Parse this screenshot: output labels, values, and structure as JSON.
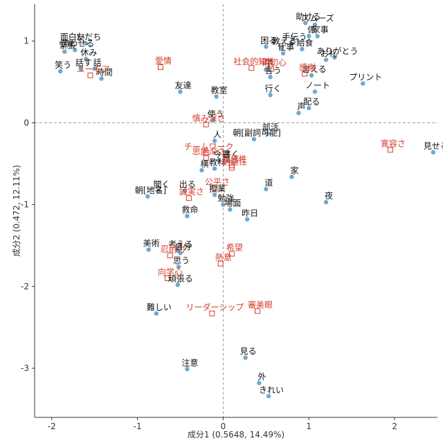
{
  "chart_data": {
    "type": "scatter",
    "title": "",
    "xlabel": "成分1 (0.5648, 14.49%)",
    "ylabel": "成分2 (0.472, 12.11%)",
    "xlim": [
      -2.2,
      2.5
    ],
    "ylim": [
      -3.6,
      1.45
    ],
    "xticks": [
      -2,
      -1,
      0,
      1,
      2
    ],
    "yticks": [
      -3,
      -2,
      -1,
      0,
      1
    ],
    "grid": false,
    "reference_lines": {
      "x": 0,
      "y": 0,
      "style": "dashed"
    },
    "colors": {
      "words_point": "#6fa8d0",
      "words_text": "#111111",
      "vars": "#d63a2a",
      "axis": "#333333",
      "refline": "#9a9a9a"
    },
    "series": [
      {
        "marker": "circle",
        "points": [
          {
            "label": "面白い",
            "x": -1.79,
            "y": 0.97
          },
          {
            "label": "友だち",
            "x": -1.6,
            "y": 0.97
          },
          {
            "label": "笑わせる",
            "x": -1.73,
            "y": 0.89
          },
          {
            "label": "緊張",
            "x": -1.85,
            "y": 0.87
          },
          {
            "label": "休み",
            "x": -1.6,
            "y": 0.78
          },
          {
            "label": "話す",
            "x": -1.66,
            "y": 0.66
          },
          {
            "label": "話",
            "x": -1.5,
            "y": 0.66
          },
          {
            "label": "笑う",
            "x": -1.9,
            "y": 0.63
          },
          {
            "label": "時間",
            "x": -1.42,
            "y": 0.54
          },
          {
            "label": "友達",
            "x": -0.5,
            "y": 0.38
          },
          {
            "label": "教室",
            "x": -0.08,
            "y": 0.32
          },
          {
            "label": "使う",
            "x": -0.12,
            "y": 0.03
          },
          {
            "label": "人",
            "x": -0.1,
            "y": -0.22
          },
          {
            "label": "今日",
            "x": -0.05,
            "y": -0.46
          },
          {
            "label": "書く",
            "x": 0.06,
            "y": -0.46
          },
          {
            "label": "横",
            "x": -0.25,
            "y": -0.58
          },
          {
            "label": "教科",
            "x": -0.1,
            "y": -0.56
          },
          {
            "label": "聞く",
            "x": -0.75,
            "y": -0.83
          },
          {
            "label": "朝[地名]",
            "x": -0.88,
            "y": -0.9
          },
          {
            "label": "出る",
            "x": -0.45,
            "y": -0.83
          },
          {
            "label": "授業",
            "x": -0.1,
            "y": -0.88
          },
          {
            "label": "勉強",
            "x": 0.0,
            "y": -1.0
          },
          {
            "label": "場面",
            "x": 0.08,
            "y": -1.06
          },
          {
            "label": "救命",
            "x": -0.42,
            "y": -1.14
          },
          {
            "label": "昨日",
            "x": 0.28,
            "y": -1.18
          },
          {
            "label": "道",
            "x": 0.5,
            "y": -0.81
          },
          {
            "label": "家",
            "x": 0.8,
            "y": -0.66
          },
          {
            "label": "夜",
            "x": 1.2,
            "y": -0.97
          },
          {
            "label": "部活",
            "x": 0.52,
            "y": -0.13
          },
          {
            "label": "朝[副詞可能]",
            "x": 0.36,
            "y": -0.2
          },
          {
            "label": "声",
            "x": 0.88,
            "y": 0.12
          },
          {
            "label": "配る",
            "x": 1.0,
            "y": 0.18
          },
          {
            "label": "行く",
            "x": 0.55,
            "y": 0.34
          },
          {
            "label": "ノート",
            "x": 1.07,
            "y": 0.38
          },
          {
            "label": "言う",
            "x": 0.55,
            "y": 0.56
          },
          {
            "label": "言える",
            "x": 1.03,
            "y": 0.58
          },
          {
            "label": "プリント",
            "x": 1.63,
            "y": 0.48
          },
          {
            "label": "子",
            "x": 0.5,
            "y": 0.65
          },
          {
            "label": "お礼",
            "x": 1.2,
            "y": 0.77
          },
          {
            "label": "ありがとう",
            "x": 1.3,
            "y": 0.8
          },
          {
            "label": "困る",
            "x": 0.5,
            "y": 0.93
          },
          {
            "label": "教える",
            "x": 0.68,
            "y": 0.92
          },
          {
            "label": "手伝う",
            "x": 0.8,
            "y": 0.97
          },
          {
            "label": "仕事",
            "x": 0.7,
            "y": 0.85
          },
          {
            "label": "給食",
            "x": 0.92,
            "y": 0.9
          },
          {
            "label": "助ける",
            "x": 0.96,
            "y": 1.22
          },
          {
            "label": "スムーズ",
            "x": 1.07,
            "y": 1.2
          },
          {
            "label": "係",
            "x": 1.0,
            "y": 1.06
          },
          {
            "label": "家事",
            "x": 1.1,
            "y": 1.06
          },
          {
            "label": "見せる",
            "x": 2.45,
            "y": -0.36
          },
          {
            "label": "考える",
            "x": -0.53,
            "y": -1.56
          },
          {
            "label": "美術",
            "x": -0.87,
            "y": -1.55
          },
          {
            "label": "自分",
            "x": -0.5,
            "y": -1.59
          },
          {
            "label": "思う",
            "x": -0.52,
            "y": -1.76
          },
          {
            "label": "頑張る",
            "x": -0.53,
            "y": -1.98
          },
          {
            "label": "難しい",
            "x": -0.78,
            "y": -2.33
          },
          {
            "label": "見る",
            "x": 0.26,
            "y": -2.87
          },
          {
            "label": "注意",
            "x": -0.42,
            "y": -3.01
          },
          {
            "label": "外",
            "x": 0.42,
            "y": -3.18
          },
          {
            "label": "きれい",
            "x": 0.53,
            "y": -3.34
          }
        ]
      },
      {
        "marker": "square",
        "points": [
          {
            "label": "ユーモア",
            "x": -1.55,
            "y": 0.58
          },
          {
            "label": "愛情",
            "x": -0.73,
            "y": 0.68
          },
          {
            "label": "社会的知性",
            "x": 0.33,
            "y": 0.67
          },
          {
            "label": "親切心",
            "x": 0.56,
            "y": 0.66
          },
          {
            "label": "感謝",
            "x": 0.95,
            "y": 0.6
          },
          {
            "label": "慎み深さ",
            "x": -0.2,
            "y": -0.02
          },
          {
            "label": "チームワーク",
            "x": -0.2,
            "y": -0.37
          },
          {
            "label": "思慮深さ",
            "x": -0.2,
            "y": -0.43
          },
          {
            "label": "超越性",
            "x": 0.1,
            "y": -0.52
          },
          {
            "label": "創造性",
            "x": 0.1,
            "y": -0.55
          },
          {
            "label": "公平さ",
            "x": -0.1,
            "y": -0.8
          },
          {
            "label": "誠実さ",
            "x": -0.4,
            "y": -0.92
          },
          {
            "label": "寛容さ",
            "x": 1.95,
            "y": -0.33
          },
          {
            "label": "希望",
            "x": 0.1,
            "y": -1.6
          },
          {
            "label": "熱意",
            "x": -0.03,
            "y": -1.72
          },
          {
            "label": "忍耐力",
            "x": -0.62,
            "y": -1.62
          },
          {
            "label": "向学心",
            "x": -0.65,
            "y": -1.9
          },
          {
            "label": "リーダーシップ",
            "x": -0.13,
            "y": -2.33
          },
          {
            "label": "審美眼",
            "x": 0.4,
            "y": -2.3
          }
        ]
      }
    ]
  }
}
